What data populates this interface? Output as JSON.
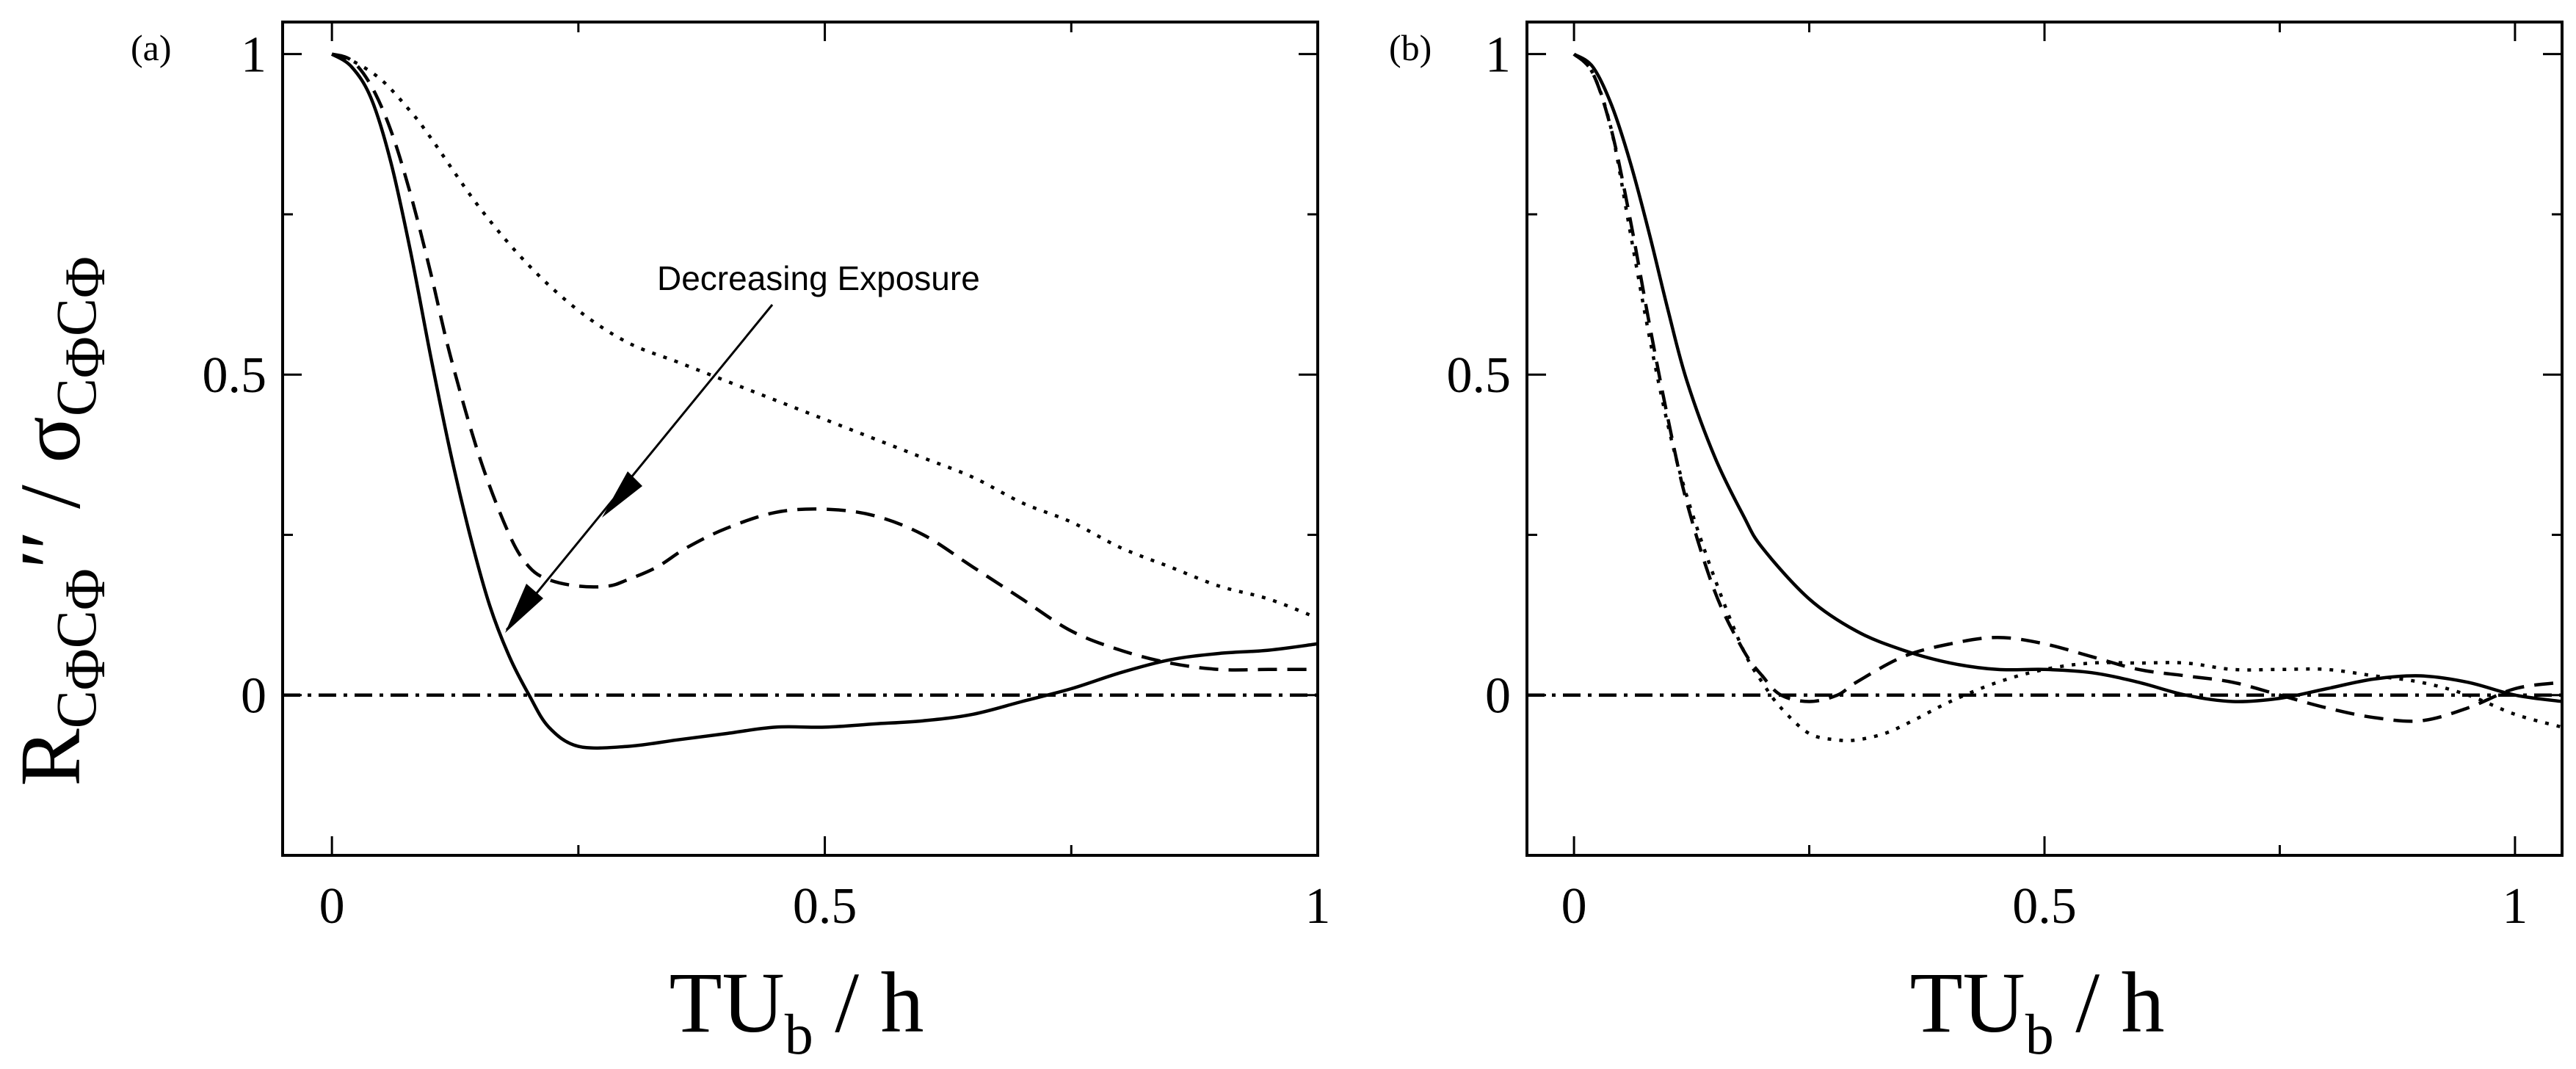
{
  "chart_data": [
    {
      "type": "line",
      "panel_label": "(a)",
      "xlabel": "TU_b / h",
      "xlabel_main": "TU",
      "xlabel_sub": "b",
      "xlabel_rest": " / h",
      "ylabel": "R_{CΦ CΦ}′ ′ / σ_{CΦ CΦ}",
      "xlim": [
        -0.05,
        1.0
      ],
      "ylim": [
        -0.25,
        1.05
      ],
      "xticks": [
        0,
        0.5,
        1
      ],
      "xtick_labels": [
        "0",
        "0.5",
        "1"
      ],
      "yticks": [
        0,
        0.5,
        1
      ],
      "ytick_labels": [
        "0",
        "0.5",
        "1"
      ],
      "annotation": {
        "text": "Decreasing Exposure"
      },
      "series": [
        {
          "name": "solid",
          "style": "solid",
          "x": [
            0,
            0.02,
            0.04,
            0.06,
            0.08,
            0.1,
            0.12,
            0.14,
            0.16,
            0.18,
            0.2,
            0.22,
            0.25,
            0.3,
            0.35,
            0.4,
            0.45,
            0.5,
            0.55,
            0.6,
            0.65,
            0.7,
            0.75,
            0.8,
            0.85,
            0.9,
            0.95,
            1.0
          ],
          "y": [
            1.0,
            0.98,
            0.93,
            0.83,
            0.69,
            0.53,
            0.38,
            0.25,
            0.14,
            0.06,
            0.0,
            -0.05,
            -0.08,
            -0.08,
            -0.07,
            -0.06,
            -0.05,
            -0.05,
            -0.045,
            -0.04,
            -0.03,
            -0.01,
            0.01,
            0.035,
            0.055,
            0.065,
            0.07,
            0.08
          ]
        },
        {
          "name": "dashed",
          "style": "dashed",
          "x": [
            0,
            0.02,
            0.04,
            0.06,
            0.08,
            0.1,
            0.12,
            0.15,
            0.18,
            0.2,
            0.22,
            0.25,
            0.28,
            0.3,
            0.33,
            0.36,
            0.4,
            0.45,
            0.5,
            0.55,
            0.6,
            0.65,
            0.7,
            0.75,
            0.8,
            0.85,
            0.9,
            0.95,
            1.0
          ],
          "y": [
            1.0,
            0.99,
            0.95,
            0.88,
            0.78,
            0.66,
            0.53,
            0.37,
            0.25,
            0.2,
            0.18,
            0.17,
            0.17,
            0.18,
            0.2,
            0.23,
            0.26,
            0.285,
            0.29,
            0.28,
            0.25,
            0.2,
            0.15,
            0.1,
            0.07,
            0.05,
            0.04,
            0.04,
            0.04
          ]
        },
        {
          "name": "dotted",
          "style": "dotted",
          "x": [
            0,
            0.02,
            0.05,
            0.08,
            0.1,
            0.15,
            0.2,
            0.25,
            0.3,
            0.35,
            0.4,
            0.45,
            0.5,
            0.55,
            0.6,
            0.65,
            0.7,
            0.75,
            0.8,
            0.85,
            0.9,
            0.95,
            1.0
          ],
          "y": [
            1.0,
            0.99,
            0.96,
            0.91,
            0.87,
            0.76,
            0.67,
            0.6,
            0.55,
            0.52,
            0.49,
            0.46,
            0.43,
            0.4,
            0.37,
            0.34,
            0.3,
            0.27,
            0.23,
            0.2,
            0.17,
            0.15,
            0.12
          ]
        },
        {
          "name": "zero-line",
          "style": "dashdot",
          "x": [
            -0.05,
            1.0
          ],
          "y": [
            0,
            0
          ]
        }
      ]
    },
    {
      "type": "line",
      "panel_label": "(b)",
      "xlabel": "TU_b / h",
      "xlabel_main": "TU",
      "xlabel_sub": "b",
      "xlabel_rest": " / h",
      "xlim": [
        -0.05,
        1.05
      ],
      "ylim": [
        -0.25,
        1.05
      ],
      "xticks": [
        0,
        0.5,
        1
      ],
      "xtick_labels": [
        "0",
        "0.5",
        "1"
      ],
      "yticks": [
        0,
        0.5,
        1
      ],
      "ytick_labels": [
        "0",
        "0.5",
        "1"
      ],
      "series": [
        {
          "name": "solid",
          "style": "solid",
          "x": [
            0,
            0.02,
            0.04,
            0.06,
            0.08,
            0.1,
            0.12,
            0.15,
            0.18,
            0.2,
            0.25,
            0.3,
            0.35,
            0.4,
            0.45,
            0.5,
            0.55,
            0.6,
            0.65,
            0.7,
            0.75,
            0.8,
            0.85,
            0.9,
            0.95,
            1.0,
            1.05
          ],
          "y": [
            1.0,
            0.98,
            0.92,
            0.83,
            0.72,
            0.6,
            0.49,
            0.37,
            0.28,
            0.23,
            0.15,
            0.1,
            0.07,
            0.05,
            0.04,
            0.04,
            0.035,
            0.02,
            0.0,
            -0.01,
            -0.005,
            0.01,
            0.025,
            0.03,
            0.02,
            0.0,
            -0.01
          ]
        },
        {
          "name": "dashed",
          "style": "dashed",
          "x": [
            0,
            0.02,
            0.04,
            0.06,
            0.08,
            0.1,
            0.12,
            0.15,
            0.18,
            0.2,
            0.22,
            0.25,
            0.28,
            0.3,
            0.35,
            0.4,
            0.45,
            0.5,
            0.55,
            0.6,
            0.65,
            0.7,
            0.75,
            0.8,
            0.85,
            0.9,
            0.95,
            1.0,
            1.05
          ],
          "y": [
            1.0,
            0.97,
            0.88,
            0.74,
            0.58,
            0.43,
            0.3,
            0.16,
            0.07,
            0.03,
            0.0,
            -0.01,
            0.0,
            0.02,
            0.06,
            0.08,
            0.09,
            0.08,
            0.06,
            0.04,
            0.03,
            0.02,
            0.0,
            -0.02,
            -0.035,
            -0.04,
            -0.02,
            0.01,
            0.02
          ]
        },
        {
          "name": "dotted",
          "style": "dotted",
          "x": [
            0,
            0.02,
            0.04,
            0.06,
            0.08,
            0.1,
            0.12,
            0.15,
            0.18,
            0.2,
            0.22,
            0.25,
            0.28,
            0.3,
            0.33,
            0.36,
            0.4,
            0.45,
            0.5,
            0.55,
            0.6,
            0.65,
            0.7,
            0.75,
            0.8,
            0.85,
            0.9,
            0.95,
            1.0,
            1.05
          ],
          "y": [
            1.0,
            0.97,
            0.88,
            0.72,
            0.56,
            0.42,
            0.31,
            0.18,
            0.07,
            0.02,
            -0.02,
            -0.06,
            -0.07,
            -0.07,
            -0.06,
            -0.04,
            -0.01,
            0.02,
            0.04,
            0.05,
            0.05,
            0.05,
            0.04,
            0.04,
            0.04,
            0.03,
            0.02,
            0.0,
            -0.03,
            -0.05
          ]
        },
        {
          "name": "zero-line",
          "style": "dashdot",
          "x": [
            -0.05,
            1.05
          ],
          "y": [
            0,
            0
          ]
        }
      ]
    }
  ]
}
